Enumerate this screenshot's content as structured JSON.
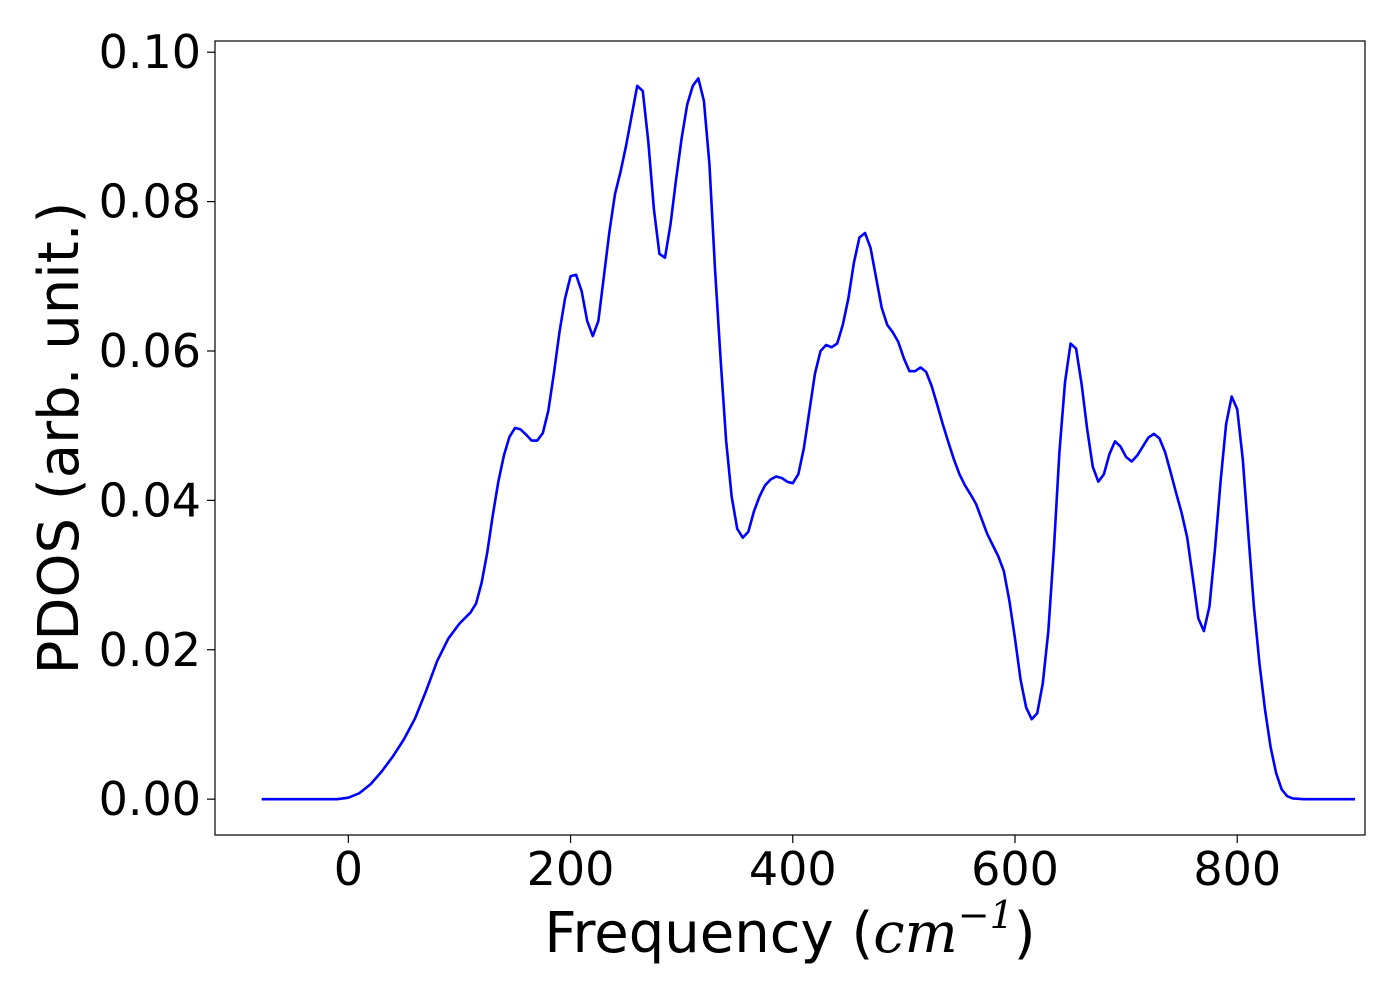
{
  "chart_data": {
    "type": "line",
    "xlabel_prefix": "Frequency (",
    "xlabel_var": "cm",
    "xlabel_sup": "−1",
    "xlabel_suffix": ")",
    "ylabel": "PDOS (arb. unit.)",
    "xlim": [
      -120,
      915
    ],
    "ylim": [
      -0.0048,
      0.1015
    ],
    "xticks": [
      0,
      200,
      400,
      600,
      800
    ],
    "xtick_labels": [
      "0",
      "200",
      "400",
      "600",
      "800"
    ],
    "yticks": [
      0.0,
      0.02,
      0.04,
      0.06,
      0.08,
      0.1
    ],
    "ytick_labels": [
      "0.00",
      "0.02",
      "0.04",
      "0.06",
      "0.08",
      "0.10"
    ],
    "grid": false,
    "series": [
      {
        "color": "#0000ff",
        "points": [
          [
            -78,
            0.0
          ],
          [
            -40,
            0.0
          ],
          [
            -10,
            0.0
          ],
          [
            0,
            0.0002
          ],
          [
            10,
            0.0008
          ],
          [
            20,
            0.002
          ],
          [
            30,
            0.0037
          ],
          [
            40,
            0.0057
          ],
          [
            50,
            0.008
          ],
          [
            60,
            0.0108
          ],
          [
            70,
            0.0145
          ],
          [
            80,
            0.0185
          ],
          [
            90,
            0.0215
          ],
          [
            100,
            0.0235
          ],
          [
            110,
            0.025
          ],
          [
            115,
            0.0262
          ],
          [
            120,
            0.029
          ],
          [
            125,
            0.033
          ],
          [
            130,
            0.038
          ],
          [
            135,
            0.0425
          ],
          [
            140,
            0.046
          ],
          [
            145,
            0.0485
          ],
          [
            150,
            0.0497
          ],
          [
            155,
            0.0495
          ],
          [
            160,
            0.0488
          ],
          [
            165,
            0.048
          ],
          [
            170,
            0.048
          ],
          [
            175,
            0.049
          ],
          [
            180,
            0.052
          ],
          [
            185,
            0.057
          ],
          [
            190,
            0.0625
          ],
          [
            195,
            0.067
          ],
          [
            200,
            0.07
          ],
          [
            205,
            0.0702
          ],
          [
            210,
            0.068
          ],
          [
            215,
            0.064
          ],
          [
            220,
            0.062
          ],
          [
            225,
            0.064
          ],
          [
            230,
            0.07
          ],
          [
            235,
            0.076
          ],
          [
            240,
            0.081
          ],
          [
            245,
            0.084
          ],
          [
            250,
            0.0875
          ],
          [
            255,
            0.0915
          ],
          [
            260,
            0.0955
          ],
          [
            265,
            0.0948
          ],
          [
            270,
            0.088
          ],
          [
            275,
            0.079
          ],
          [
            280,
            0.073
          ],
          [
            285,
            0.0725
          ],
          [
            290,
            0.077
          ],
          [
            295,
            0.083
          ],
          [
            300,
            0.0885
          ],
          [
            305,
            0.093
          ],
          [
            310,
            0.0955
          ],
          [
            315,
            0.0965
          ],
          [
            320,
            0.0935
          ],
          [
            325,
            0.085
          ],
          [
            330,
            0.071
          ],
          [
            335,
            0.059
          ],
          [
            340,
            0.048
          ],
          [
            345,
            0.0405
          ],
          [
            350,
            0.0362
          ],
          [
            355,
            0.035
          ],
          [
            360,
            0.0358
          ],
          [
            365,
            0.0385
          ],
          [
            370,
            0.0405
          ],
          [
            375,
            0.042
          ],
          [
            380,
            0.0428
          ],
          [
            385,
            0.0432
          ],
          [
            390,
            0.043
          ],
          [
            395,
            0.0425
          ],
          [
            400,
            0.0423
          ],
          [
            405,
            0.0435
          ],
          [
            410,
            0.047
          ],
          [
            415,
            0.052
          ],
          [
            420,
            0.057
          ],
          [
            425,
            0.06
          ],
          [
            430,
            0.0608
          ],
          [
            435,
            0.0605
          ],
          [
            440,
            0.061
          ],
          [
            445,
            0.0635
          ],
          [
            450,
            0.067
          ],
          [
            455,
            0.0718
          ],
          [
            460,
            0.0752
          ],
          [
            465,
            0.0758
          ],
          [
            470,
            0.0738
          ],
          [
            475,
            0.0698
          ],
          [
            480,
            0.0658
          ],
          [
            485,
            0.0635
          ],
          [
            490,
            0.0625
          ],
          [
            495,
            0.0612
          ],
          [
            500,
            0.059
          ],
          [
            505,
            0.0573
          ],
          [
            510,
            0.0573
          ],
          [
            515,
            0.0578
          ],
          [
            520,
            0.0572
          ],
          [
            525,
            0.0553
          ],
          [
            530,
            0.0528
          ],
          [
            535,
            0.0502
          ],
          [
            540,
            0.0478
          ],
          [
            545,
            0.0455
          ],
          [
            550,
            0.0435
          ],
          [
            555,
            0.042
          ],
          [
            560,
            0.0408
          ],
          [
            565,
            0.0395
          ],
          [
            570,
            0.0375
          ],
          [
            575,
            0.0355
          ],
          [
            580,
            0.034
          ],
          [
            585,
            0.0325
          ],
          [
            590,
            0.0305
          ],
          [
            595,
            0.0265
          ],
          [
            600,
            0.0215
          ],
          [
            605,
            0.016
          ],
          [
            610,
            0.0123
          ],
          [
            615,
            0.0107
          ],
          [
            620,
            0.0115
          ],
          [
            625,
            0.0155
          ],
          [
            630,
            0.0225
          ],
          [
            635,
            0.0335
          ],
          [
            640,
            0.0465
          ],
          [
            645,
            0.0558
          ],
          [
            650,
            0.061
          ],
          [
            655,
            0.0603
          ],
          [
            660,
            0.0555
          ],
          [
            665,
            0.0495
          ],
          [
            670,
            0.0445
          ],
          [
            675,
            0.0425
          ],
          [
            680,
            0.0435
          ],
          [
            685,
            0.0462
          ],
          [
            690,
            0.0479
          ],
          [
            695,
            0.0472
          ],
          [
            700,
            0.0458
          ],
          [
            705,
            0.0452
          ],
          [
            710,
            0.046
          ],
          [
            715,
            0.0472
          ],
          [
            720,
            0.0484
          ],
          [
            725,
            0.0489
          ],
          [
            730,
            0.0483
          ],
          [
            735,
            0.0465
          ],
          [
            740,
            0.0438
          ],
          [
            745,
            0.041
          ],
          [
            750,
            0.0383
          ],
          [
            755,
            0.035
          ],
          [
            760,
            0.0297
          ],
          [
            765,
            0.0242
          ],
          [
            770,
            0.0225
          ],
          [
            775,
            0.0258
          ],
          [
            780,
            0.0335
          ],
          [
            785,
            0.0425
          ],
          [
            790,
            0.0502
          ],
          [
            795,
            0.0539
          ],
          [
            800,
            0.0522
          ],
          [
            805,
            0.0455
          ],
          [
            810,
            0.0355
          ],
          [
            815,
            0.0258
          ],
          [
            820,
            0.0182
          ],
          [
            825,
            0.012
          ],
          [
            830,
            0.007
          ],
          [
            835,
            0.0035
          ],
          [
            840,
            0.0013
          ],
          [
            845,
            0.0004
          ],
          [
            850,
            0.0001
          ],
          [
            860,
            0.0
          ],
          [
            880,
            0.0
          ],
          [
            900,
            0.0
          ],
          [
            906,
            0.0
          ]
        ]
      }
    ]
  }
}
